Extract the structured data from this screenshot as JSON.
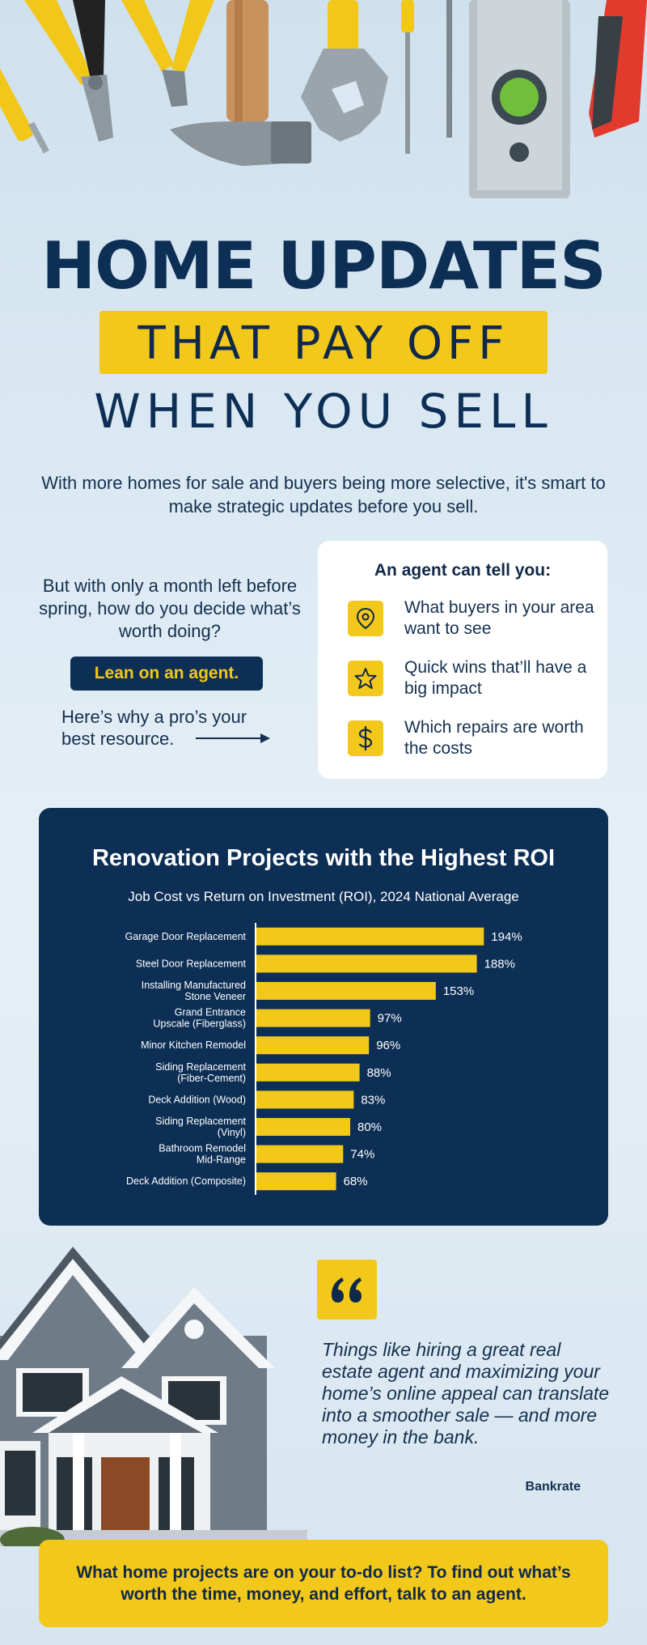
{
  "headline": {
    "line1": "HOME UPDATES",
    "line2": "THAT PAY OFF",
    "line3": "WHEN YOU SELL"
  },
  "intro": "With more homes for sale and buyers being more selective, it's smart to make strategic updates before you sell.",
  "left_column": {
    "question": "But with only a month left before spring, how do you decide what’s worth doing?",
    "cta_label": "Lean on an agent.",
    "why_line1": "Here’s why a pro’s your",
    "why_line2": "best resource."
  },
  "agent_card": {
    "title": "An agent can tell you:",
    "items": [
      {
        "icon": "location-pin-icon",
        "text": "What buyers in your area want to see"
      },
      {
        "icon": "star-icon",
        "text": "Quick wins that’ll have a big impact"
      },
      {
        "icon": "dollar-icon",
        "text": "Which repairs are worth the costs"
      }
    ]
  },
  "chart_data": {
    "type": "bar",
    "orientation": "horizontal",
    "title": "Renovation Projects with the Highest ROI",
    "subtitle": "Job Cost vs Return on Investment (ROI), 2024 National Average",
    "categories": [
      "Garage Door Replacement",
      "Steel Door Replacement",
      "Installing Manufactured Stone Veneer",
      "Grand Entrance Upscale (Fiberglass)",
      "Minor Kitchen Remodel",
      "Siding Replacement (Fiber-Cement)",
      "Deck Addition (Wood)",
      "Siding Replacement (Vinyl)",
      "Bathroom Remodel Mid-Range",
      "Deck Addition (Composite)"
    ],
    "category_lines": [
      [
        "Garage Door Replacement"
      ],
      [
        "Steel Door Replacement"
      ],
      [
        "Installing Manufactured",
        "Stone Veneer"
      ],
      [
        "Grand Entrance",
        "Upscale (Fiberglass)"
      ],
      [
        "Minor Kitchen Remodel"
      ],
      [
        "Siding Replacement",
        "(Fiber-Cement)"
      ],
      [
        "Deck Addition (Wood)"
      ],
      [
        "Siding Replacement",
        "(Vinyl)"
      ],
      [
        "Bathroom Remodel",
        "Mid-Range"
      ],
      [
        "Deck Addition (Composite)"
      ]
    ],
    "values": [
      194,
      188,
      153,
      97,
      96,
      88,
      83,
      80,
      74,
      68
    ],
    "value_labels": [
      "194%",
      "188%",
      "153%",
      "97%",
      "96%",
      "88%",
      "83%",
      "80%",
      "74%",
      "68%"
    ],
    "xlim": [
      0,
      200
    ],
    "bar_color": "#F2C81B",
    "background_color": "#0D2F55"
  },
  "quote": {
    "mark": "“",
    "text": "Things like hiring a great real estate agent and maximizing your home’s online appeal can translate into a smoother sale — and more money in the bank.",
    "source": "Bankrate"
  },
  "footer_cta": "What home projects are on your to-do list? To find out what’s worth the time, money, and effort, talk to an agent.",
  "colors": {
    "navy": "#0D2F55",
    "yellow": "#F2C81B"
  }
}
